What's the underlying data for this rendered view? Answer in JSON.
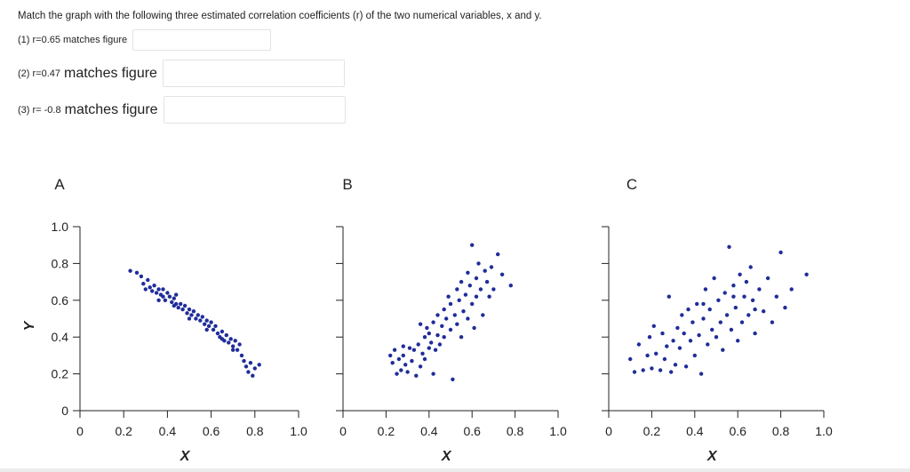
{
  "question": "Match the graph with the following three estimated correlation coefficients (r) of the two numerical variables, x and y.",
  "answers": [
    {
      "prefix": "(1) r=0.65",
      "suffix": "matches figure",
      "value": ""
    },
    {
      "prefix": "(2) r=0.47",
      "suffix": "matches figure",
      "value": ""
    },
    {
      "prefix": "(3) r= -0.8",
      "suffix": "matches figure",
      "value": ""
    }
  ],
  "colors": {
    "points": "#1f2d99",
    "axis": "#222222"
  },
  "chart_data": [
    {
      "type": "scatter",
      "title": "A",
      "xlabel": "X",
      "ylabel": "Y",
      "xlim": [
        0,
        1.0
      ],
      "ylim": [
        0,
        1.0
      ],
      "xticks": [
        "0",
        "0.2",
        "0.4",
        "0.6",
        "0.8",
        "1.0"
      ],
      "yticks": [
        "0",
        "0.2",
        "0.4",
        "0.6",
        "0.8",
        "1.0"
      ],
      "grid": false,
      "points": [
        [
          0.23,
          0.76
        ],
        [
          0.26,
          0.75
        ],
        [
          0.28,
          0.73
        ],
        [
          0.29,
          0.69
        ],
        [
          0.3,
          0.66
        ],
        [
          0.31,
          0.71
        ],
        [
          0.32,
          0.67
        ],
        [
          0.33,
          0.65
        ],
        [
          0.34,
          0.68
        ],
        [
          0.35,
          0.64
        ],
        [
          0.36,
          0.66
        ],
        [
          0.37,
          0.63
        ],
        [
          0.38,
          0.62
        ],
        [
          0.38,
          0.66
        ],
        [
          0.39,
          0.6
        ],
        [
          0.4,
          0.64
        ],
        [
          0.41,
          0.62
        ],
        [
          0.42,
          0.59
        ],
        [
          0.43,
          0.61
        ],
        [
          0.43,
          0.57
        ],
        [
          0.44,
          0.63
        ],
        [
          0.45,
          0.56
        ],
        [
          0.46,
          0.58
        ],
        [
          0.47,
          0.55
        ],
        [
          0.48,
          0.57
        ],
        [
          0.49,
          0.53
        ],
        [
          0.5,
          0.55
        ],
        [
          0.51,
          0.52
        ],
        [
          0.52,
          0.54
        ],
        [
          0.53,
          0.5
        ],
        [
          0.54,
          0.52
        ],
        [
          0.55,
          0.49
        ],
        [
          0.56,
          0.51
        ],
        [
          0.57,
          0.47
        ],
        [
          0.58,
          0.49
        ],
        [
          0.59,
          0.46
        ],
        [
          0.6,
          0.48
        ],
        [
          0.61,
          0.44
        ],
        [
          0.62,
          0.46
        ],
        [
          0.63,
          0.42
        ],
        [
          0.64,
          0.4
        ],
        [
          0.65,
          0.43
        ],
        [
          0.66,
          0.38
        ],
        [
          0.67,
          0.41
        ],
        [
          0.68,
          0.37
        ],
        [
          0.69,
          0.39
        ],
        [
          0.7,
          0.35
        ],
        [
          0.71,
          0.38
        ],
        [
          0.72,
          0.33
        ],
        [
          0.73,
          0.36
        ],
        [
          0.74,
          0.3
        ],
        [
          0.75,
          0.27
        ],
        [
          0.76,
          0.24
        ],
        [
          0.77,
          0.21
        ],
        [
          0.78,
          0.26
        ],
        [
          0.79,
          0.19
        ],
        [
          0.8,
          0.23
        ],
        [
          0.82,
          0.25
        ],
        [
          0.44,
          0.58
        ],
        [
          0.5,
          0.5
        ],
        [
          0.36,
          0.6
        ],
        [
          0.58,
          0.44
        ],
        [
          0.65,
          0.39
        ],
        [
          0.7,
          0.33
        ]
      ]
    },
    {
      "type": "scatter",
      "title": "B",
      "xlabel": "X",
      "ylabel": "",
      "xlim": [
        0,
        1.0
      ],
      "ylim": [
        0,
        1.0
      ],
      "xticks": [
        "0",
        "0.2",
        "0.4",
        "0.6",
        "0.8",
        "1.0"
      ],
      "yticks": [
        "",
        "",
        "",
        "",
        "",
        ""
      ],
      "grid": false,
      "points": [
        [
          0.22,
          0.3
        ],
        [
          0.23,
          0.26
        ],
        [
          0.24,
          0.33
        ],
        [
          0.25,
          0.2
        ],
        [
          0.26,
          0.28
        ],
        [
          0.27,
          0.22
        ],
        [
          0.28,
          0.3
        ],
        [
          0.29,
          0.25
        ],
        [
          0.3,
          0.21
        ],
        [
          0.31,
          0.34
        ],
        [
          0.32,
          0.27
        ],
        [
          0.33,
          0.33
        ],
        [
          0.34,
          0.19
        ],
        [
          0.35,
          0.36
        ],
        [
          0.36,
          0.24
        ],
        [
          0.37,
          0.31
        ],
        [
          0.38,
          0.4
        ],
        [
          0.38,
          0.28
        ],
        [
          0.39,
          0.45
        ],
        [
          0.4,
          0.34
        ],
        [
          0.4,
          0.42
        ],
        [
          0.41,
          0.37
        ],
        [
          0.42,
          0.48
        ],
        [
          0.43,
          0.33
        ],
        [
          0.44,
          0.41
        ],
        [
          0.44,
          0.52
        ],
        [
          0.45,
          0.36
        ],
        [
          0.46,
          0.46
        ],
        [
          0.47,
          0.55
        ],
        [
          0.47,
          0.4
        ],
        [
          0.48,
          0.5
        ],
        [
          0.49,
          0.62
        ],
        [
          0.5,
          0.44
        ],
        [
          0.5,
          0.58
        ],
        [
          0.51,
          0.17
        ],
        [
          0.52,
          0.52
        ],
        [
          0.53,
          0.66
        ],
        [
          0.53,
          0.47
        ],
        [
          0.54,
          0.6
        ],
        [
          0.55,
          0.4
        ],
        [
          0.55,
          0.7
        ],
        [
          0.56,
          0.54
        ],
        [
          0.57,
          0.63
        ],
        [
          0.58,
          0.75
        ],
        [
          0.58,
          0.5
        ],
        [
          0.59,
          0.68
        ],
        [
          0.6,
          0.58
        ],
        [
          0.61,
          0.45
        ],
        [
          0.62,
          0.72
        ],
        [
          0.62,
          0.62
        ],
        [
          0.63,
          0.8
        ],
        [
          0.64,
          0.66
        ],
        [
          0.65,
          0.52
        ],
        [
          0.66,
          0.76
        ],
        [
          0.67,
          0.7
        ],
        [
          0.68,
          0.62
        ],
        [
          0.69,
          0.78
        ],
        [
          0.7,
          0.66
        ],
        [
          0.72,
          0.85
        ],
        [
          0.74,
          0.74
        ],
        [
          0.36,
          0.47
        ],
        [
          0.6,
          0.9
        ],
        [
          0.78,
          0.68
        ],
        [
          0.42,
          0.2
        ],
        [
          0.28,
          0.35
        ]
      ]
    },
    {
      "type": "scatter",
      "title": "C",
      "xlabel": "X",
      "ylabel": "",
      "xlim": [
        0,
        1.0
      ],
      "ylim": [
        0,
        1.0
      ],
      "xticks": [
        "0",
        "0.2",
        "0.4",
        "0.6",
        "0.8",
        "1.0"
      ],
      "yticks": [
        "",
        "",
        "",
        "",
        "",
        ""
      ],
      "grid": false,
      "points": [
        [
          0.1,
          0.28
        ],
        [
          0.12,
          0.21
        ],
        [
          0.14,
          0.36
        ],
        [
          0.16,
          0.22
        ],
        [
          0.18,
          0.3
        ],
        [
          0.19,
          0.4
        ],
        [
          0.2,
          0.23
        ],
        [
          0.21,
          0.46
        ],
        [
          0.22,
          0.31
        ],
        [
          0.24,
          0.22
        ],
        [
          0.25,
          0.42
        ],
        [
          0.26,
          0.28
        ],
        [
          0.27,
          0.35
        ],
        [
          0.28,
          0.62
        ],
        [
          0.29,
          0.21
        ],
        [
          0.3,
          0.38
        ],
        [
          0.31,
          0.25
        ],
        [
          0.32,
          0.45
        ],
        [
          0.33,
          0.34
        ],
        [
          0.34,
          0.52
        ],
        [
          0.35,
          0.42
        ],
        [
          0.36,
          0.24
        ],
        [
          0.37,
          0.55
        ],
        [
          0.38,
          0.38
        ],
        [
          0.39,
          0.48
        ],
        [
          0.4,
          0.3
        ],
        [
          0.41,
          0.58
        ],
        [
          0.42,
          0.41
        ],
        [
          0.43,
          0.2
        ],
        [
          0.44,
          0.5
        ],
        [
          0.45,
          0.66
        ],
        [
          0.46,
          0.36
        ],
        [
          0.47,
          0.55
        ],
        [
          0.48,
          0.44
        ],
        [
          0.49,
          0.72
        ],
        [
          0.5,
          0.4
        ],
        [
          0.51,
          0.6
        ],
        [
          0.52,
          0.48
        ],
        [
          0.53,
          0.33
        ],
        [
          0.54,
          0.64
        ],
        [
          0.55,
          0.52
        ],
        [
          0.56,
          0.89
        ],
        [
          0.57,
          0.44
        ],
        [
          0.58,
          0.68
        ],
        [
          0.59,
          0.56
        ],
        [
          0.6,
          0.38
        ],
        [
          0.61,
          0.74
        ],
        [
          0.62,
          0.48
        ],
        [
          0.63,
          0.62
        ],
        [
          0.64,
          0.7
        ],
        [
          0.65,
          0.52
        ],
        [
          0.66,
          0.78
        ],
        [
          0.67,
          0.6
        ],
        [
          0.68,
          0.42
        ],
        [
          0.7,
          0.66
        ],
        [
          0.72,
          0.54
        ],
        [
          0.74,
          0.72
        ],
        [
          0.76,
          0.48
        ],
        [
          0.78,
          0.62
        ],
        [
          0.8,
          0.86
        ],
        [
          0.82,
          0.56
        ],
        [
          0.85,
          0.66
        ],
        [
          0.92,
          0.74
        ],
        [
          0.58,
          0.62
        ],
        [
          0.68,
          0.55
        ],
        [
          0.44,
          0.58
        ]
      ]
    }
  ]
}
